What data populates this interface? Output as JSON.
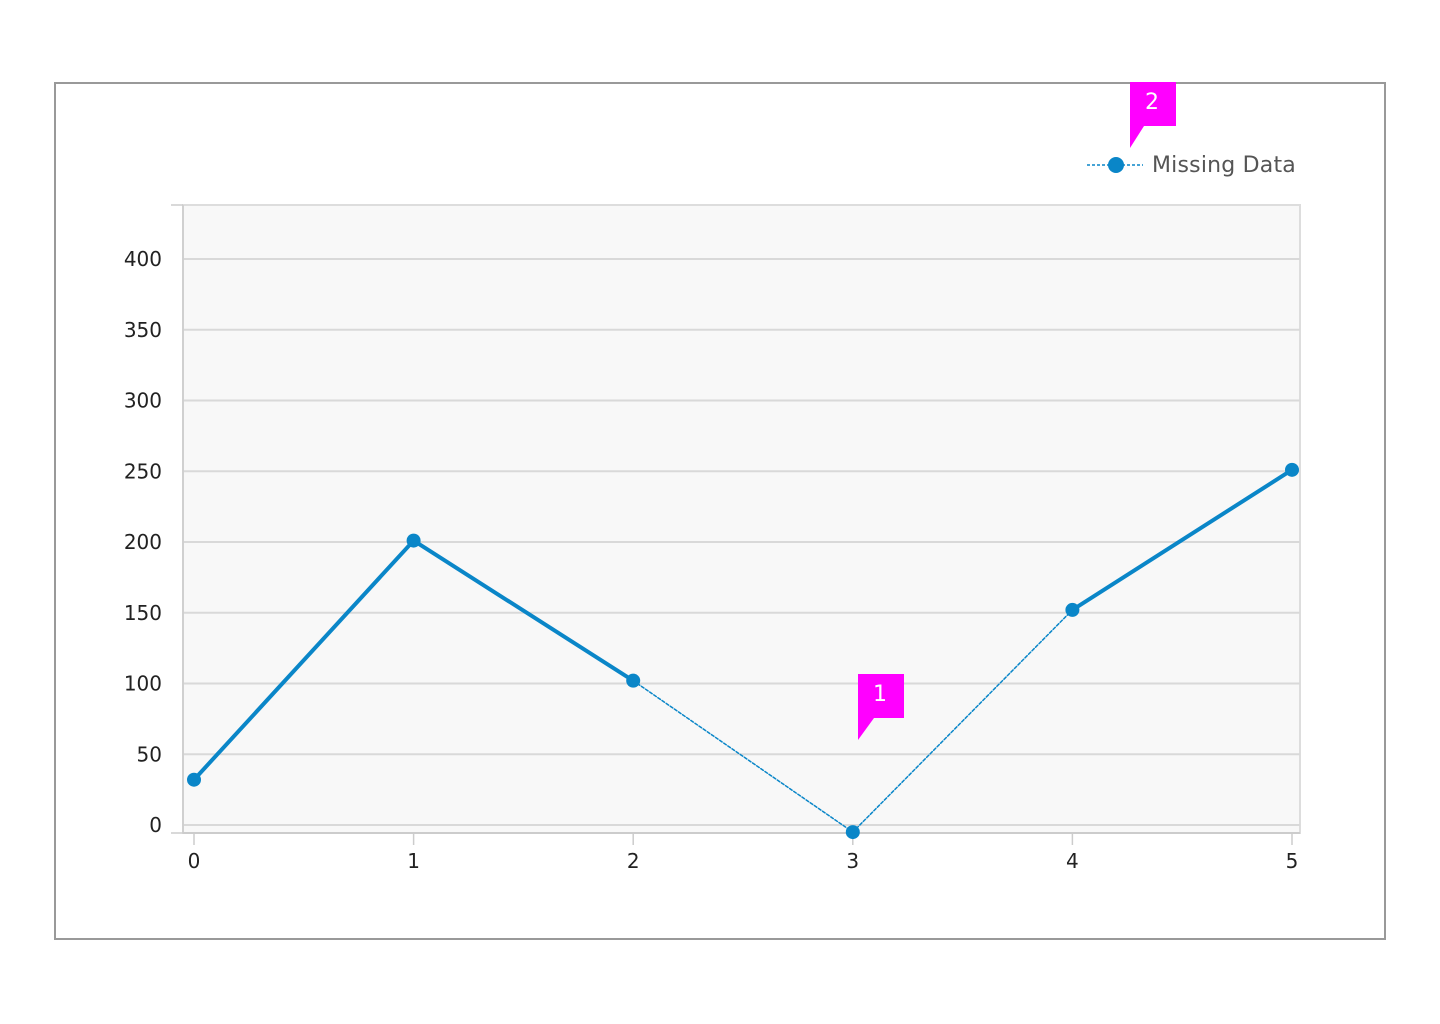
{
  "chart_data": {
    "type": "line",
    "x": [
      0,
      1,
      2,
      3,
      4,
      5
    ],
    "series": [
      {
        "name": "Missing Data",
        "values": [
          32,
          201,
          102,
          -5,
          152,
          251
        ],
        "segment_styles": [
          "solid",
          "solid",
          "dashed",
          "dashed",
          "solid"
        ]
      }
    ],
    "x_ticks": [
      "0",
      "1",
      "2",
      "3",
      "4",
      "5"
    ],
    "y_ticks": [
      "0",
      "50",
      "100",
      "150",
      "200",
      "250",
      "300",
      "350",
      "400"
    ],
    "xlim": [
      0,
      5
    ],
    "ylim": [
      -5,
      430
    ],
    "grid": true,
    "legend_position": "top-right",
    "series_color": "#0a86c8"
  },
  "callouts": [
    {
      "label": "1",
      "color": "#ff00ff"
    },
    {
      "label": "2",
      "color": "#ff00ff"
    }
  ]
}
